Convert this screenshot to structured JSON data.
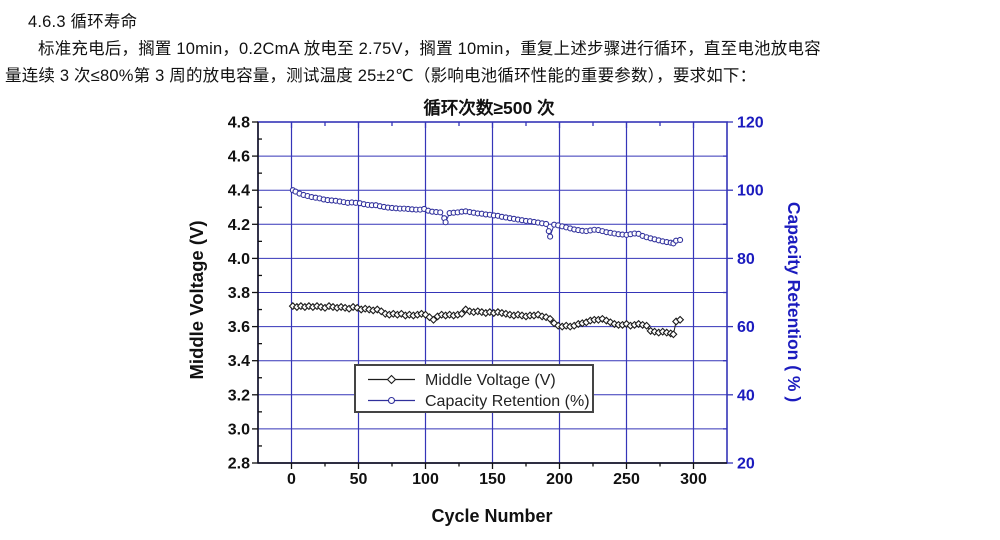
{
  "document": {
    "heading": "4.6.3 循环寿命",
    "line1": "标准充电后，搁置 10min，0.2CmA 放电至 2.75V，搁置 10min，重复上述步骤进行循环，直至电池放电容",
    "line2": "量连续 3 次≤80%第 3 周的放电容量，测试温度 25±2℃（影响电池循环性能的重要参数），要求如下："
  },
  "chart_data": {
    "type": "line",
    "title": "循环次数≥500 次",
    "xlabel": "Cycle Number",
    "ylabel_left": "Middle Voltage (V)",
    "ylabel_right": "Capacity Retention ( % )",
    "x_range": [
      -25,
      325
    ],
    "x_ticks": [
      0,
      50,
      100,
      150,
      200,
      250,
      300
    ],
    "x_minor_ticks": [
      25,
      75,
      125,
      175,
      225,
      275
    ],
    "y_left_range": [
      2.8,
      4.8
    ],
    "y_left_ticks": [
      2.8,
      3.0,
      3.2,
      3.4,
      3.6,
      3.8,
      4.0,
      4.2,
      4.4,
      4.6,
      4.8
    ],
    "y_left_minor_ticks": [
      2.9,
      3.1,
      3.3,
      3.5,
      3.7,
      3.9,
      4.1,
      4.3,
      4.5,
      4.7
    ],
    "y_right_range": [
      20,
      120
    ],
    "y_right_ticks": [
      20,
      40,
      60,
      80,
      100,
      120
    ],
    "y_right_minor_ticks": [
      30,
      50,
      70,
      90,
      110
    ],
    "grid": true,
    "legend_position": "bottom-center",
    "colors": {
      "grid": "#3535b8",
      "black_text": "#111111",
      "blue_text": "#1b1bbe",
      "voltage_series": "#1d1d1d",
      "capacity_series": "#30309c",
      "legend_border": "#444444",
      "background": "#ffffff"
    },
    "legend": {
      "entries": [
        {
          "label": "Middle Voltage (V)",
          "marker": "diamond",
          "color": "#1d1d1d"
        },
        {
          "label": "Capacity Retention (%)",
          "marker": "circle",
          "color": "#30309c"
        }
      ]
    },
    "series": [
      {
        "name": "Middle Voltage (V)",
        "axis": "left",
        "marker": "diamond",
        "color": "#1d1d1d",
        "points": [
          [
            1,
            3.72
          ],
          [
            4,
            3.715
          ],
          [
            7,
            3.72
          ],
          [
            10,
            3.715
          ],
          [
            13,
            3.72
          ],
          [
            16,
            3.715
          ],
          [
            19,
            3.72
          ],
          [
            22,
            3.715
          ],
          [
            25,
            3.71
          ],
          [
            28,
            3.72
          ],
          [
            31,
            3.715
          ],
          [
            34,
            3.71
          ],
          [
            37,
            3.715
          ],
          [
            40,
            3.71
          ],
          [
            43,
            3.705
          ],
          [
            46,
            3.715
          ],
          [
            49,
            3.71
          ],
          [
            52,
            3.7
          ],
          [
            55,
            3.705
          ],
          [
            58,
            3.7
          ],
          [
            61,
            3.695
          ],
          [
            64,
            3.7
          ],
          [
            67,
            3.69
          ],
          [
            70,
            3.675
          ],
          [
            73,
            3.67
          ],
          [
            76,
            3.675
          ],
          [
            79,
            3.67
          ],
          [
            82,
            3.675
          ],
          [
            85,
            3.665
          ],
          [
            88,
            3.67
          ],
          [
            91,
            3.665
          ],
          [
            94,
            3.67
          ],
          [
            97,
            3.675
          ],
          [
            100,
            3.67
          ],
          [
            103,
            3.655
          ],
          [
            106,
            3.64
          ],
          [
            109,
            3.66
          ],
          [
            112,
            3.67
          ],
          [
            115,
            3.665
          ],
          [
            118,
            3.67
          ],
          [
            121,
            3.665
          ],
          [
            124,
            3.67
          ],
          [
            127,
            3.675
          ],
          [
            130,
            3.7
          ],
          [
            133,
            3.69
          ],
          [
            136,
            3.685
          ],
          [
            139,
            3.69
          ],
          [
            142,
            3.685
          ],
          [
            145,
            3.68
          ],
          [
            148,
            3.685
          ],
          [
            151,
            3.68
          ],
          [
            154,
            3.685
          ],
          [
            157,
            3.68
          ],
          [
            160,
            3.675
          ],
          [
            163,
            3.67
          ],
          [
            166,
            3.665
          ],
          [
            169,
            3.67
          ],
          [
            172,
            3.665
          ],
          [
            175,
            3.66
          ],
          [
            178,
            3.665
          ],
          [
            181,
            3.665
          ],
          [
            184,
            3.67
          ],
          [
            187,
            3.66
          ],
          [
            190,
            3.655
          ],
          [
            193,
            3.645
          ],
          [
            196,
            3.62
          ],
          [
            199,
            3.605
          ],
          [
            202,
            3.6
          ],
          [
            205,
            3.605
          ],
          [
            208,
            3.6
          ],
          [
            211,
            3.605
          ],
          [
            214,
            3.615
          ],
          [
            217,
            3.62
          ],
          [
            220,
            3.625
          ],
          [
            223,
            3.635
          ],
          [
            226,
            3.64
          ],
          [
            229,
            3.64
          ],
          [
            232,
            3.645
          ],
          [
            235,
            3.635
          ],
          [
            238,
            3.625
          ],
          [
            241,
            3.615
          ],
          [
            244,
            3.61
          ],
          [
            247,
            3.61
          ],
          [
            250,
            3.615
          ],
          [
            253,
            3.605
          ],
          [
            256,
            3.61
          ],
          [
            259,
            3.615
          ],
          [
            262,
            3.61
          ],
          [
            265,
            3.605
          ],
          [
            268,
            3.575
          ],
          [
            271,
            3.57
          ],
          [
            274,
            3.565
          ],
          [
            277,
            3.57
          ],
          [
            280,
            3.565
          ],
          [
            283,
            3.56
          ],
          [
            285,
            3.555
          ],
          [
            287,
            3.63
          ],
          [
            290,
            3.64
          ]
        ]
      },
      {
        "name": "Capacity Retention (%)",
        "axis": "right",
        "marker": "circle",
        "color": "#30309c",
        "points": [
          [
            1,
            100.0
          ],
          [
            3,
            99.6
          ],
          [
            6,
            99.0
          ],
          [
            9,
            98.6
          ],
          [
            12,
            98.3
          ],
          [
            15,
            98.0
          ],
          [
            18,
            97.8
          ],
          [
            21,
            97.6
          ],
          [
            24,
            97.3
          ],
          [
            27,
            97.1
          ],
          [
            30,
            97.0
          ],
          [
            33,
            96.9
          ],
          [
            36,
            96.7
          ],
          [
            39,
            96.5
          ],
          [
            42,
            96.3
          ],
          [
            45,
            96.4
          ],
          [
            48,
            96.3
          ],
          [
            51,
            96.2
          ],
          [
            54,
            95.9
          ],
          [
            57,
            95.7
          ],
          [
            60,
            95.6
          ],
          [
            63,
            95.6
          ],
          [
            66,
            95.3
          ],
          [
            69,
            95.1
          ],
          [
            72,
            94.9
          ],
          [
            75,
            94.8
          ],
          [
            78,
            94.7
          ],
          [
            81,
            94.6
          ],
          [
            84,
            94.6
          ],
          [
            87,
            94.5
          ],
          [
            90,
            94.4
          ],
          [
            93,
            94.3
          ],
          [
            96,
            94.3
          ],
          [
            99,
            94.5
          ],
          [
            102,
            94.0
          ],
          [
            105,
            93.7
          ],
          [
            108,
            93.6
          ],
          [
            111,
            93.5
          ],
          [
            114,
            91.8
          ],
          [
            115,
            90.6
          ],
          [
            118,
            93.3
          ],
          [
            121,
            93.4
          ],
          [
            124,
            93.5
          ],
          [
            127,
            93.7
          ],
          [
            130,
            93.8
          ],
          [
            133,
            93.6
          ],
          [
            136,
            93.4
          ],
          [
            139,
            93.2
          ],
          [
            142,
            93.1
          ],
          [
            145,
            92.9
          ],
          [
            148,
            92.8
          ],
          [
            151,
            92.6
          ],
          [
            154,
            92.5
          ],
          [
            157,
            92.2
          ],
          [
            160,
            92.0
          ],
          [
            163,
            91.8
          ],
          [
            166,
            91.6
          ],
          [
            169,
            91.4
          ],
          [
            172,
            91.2
          ],
          [
            175,
            91.0
          ],
          [
            178,
            90.9
          ],
          [
            181,
            90.7
          ],
          [
            184,
            90.5
          ],
          [
            187,
            90.3
          ],
          [
            190,
            90.1
          ],
          [
            192,
            88.0
          ],
          [
            193,
            86.4
          ],
          [
            196,
            89.9
          ],
          [
            199,
            89.7
          ],
          [
            202,
            89.4
          ],
          [
            205,
            89.1
          ],
          [
            208,
            88.8
          ],
          [
            211,
            88.5
          ],
          [
            214,
            88.3
          ],
          [
            217,
            88.1
          ],
          [
            220,
            88.0
          ],
          [
            223,
            88.2
          ],
          [
            226,
            88.4
          ],
          [
            229,
            88.3
          ],
          [
            232,
            88.0
          ],
          [
            235,
            87.7
          ],
          [
            238,
            87.5
          ],
          [
            241,
            87.3
          ],
          [
            244,
            87.1
          ],
          [
            247,
            87.0
          ],
          [
            250,
            86.9
          ],
          [
            253,
            87.1
          ],
          [
            256,
            87.3
          ],
          [
            259,
            87.2
          ],
          [
            262,
            86.6
          ],
          [
            265,
            86.2
          ],
          [
            268,
            85.9
          ],
          [
            271,
            85.6
          ],
          [
            274,
            85.3
          ],
          [
            277,
            85.0
          ],
          [
            280,
            84.8
          ],
          [
            283,
            84.6
          ],
          [
            285,
            84.4
          ],
          [
            287,
            85.2
          ],
          [
            290,
            85.4
          ]
        ]
      }
    ]
  }
}
